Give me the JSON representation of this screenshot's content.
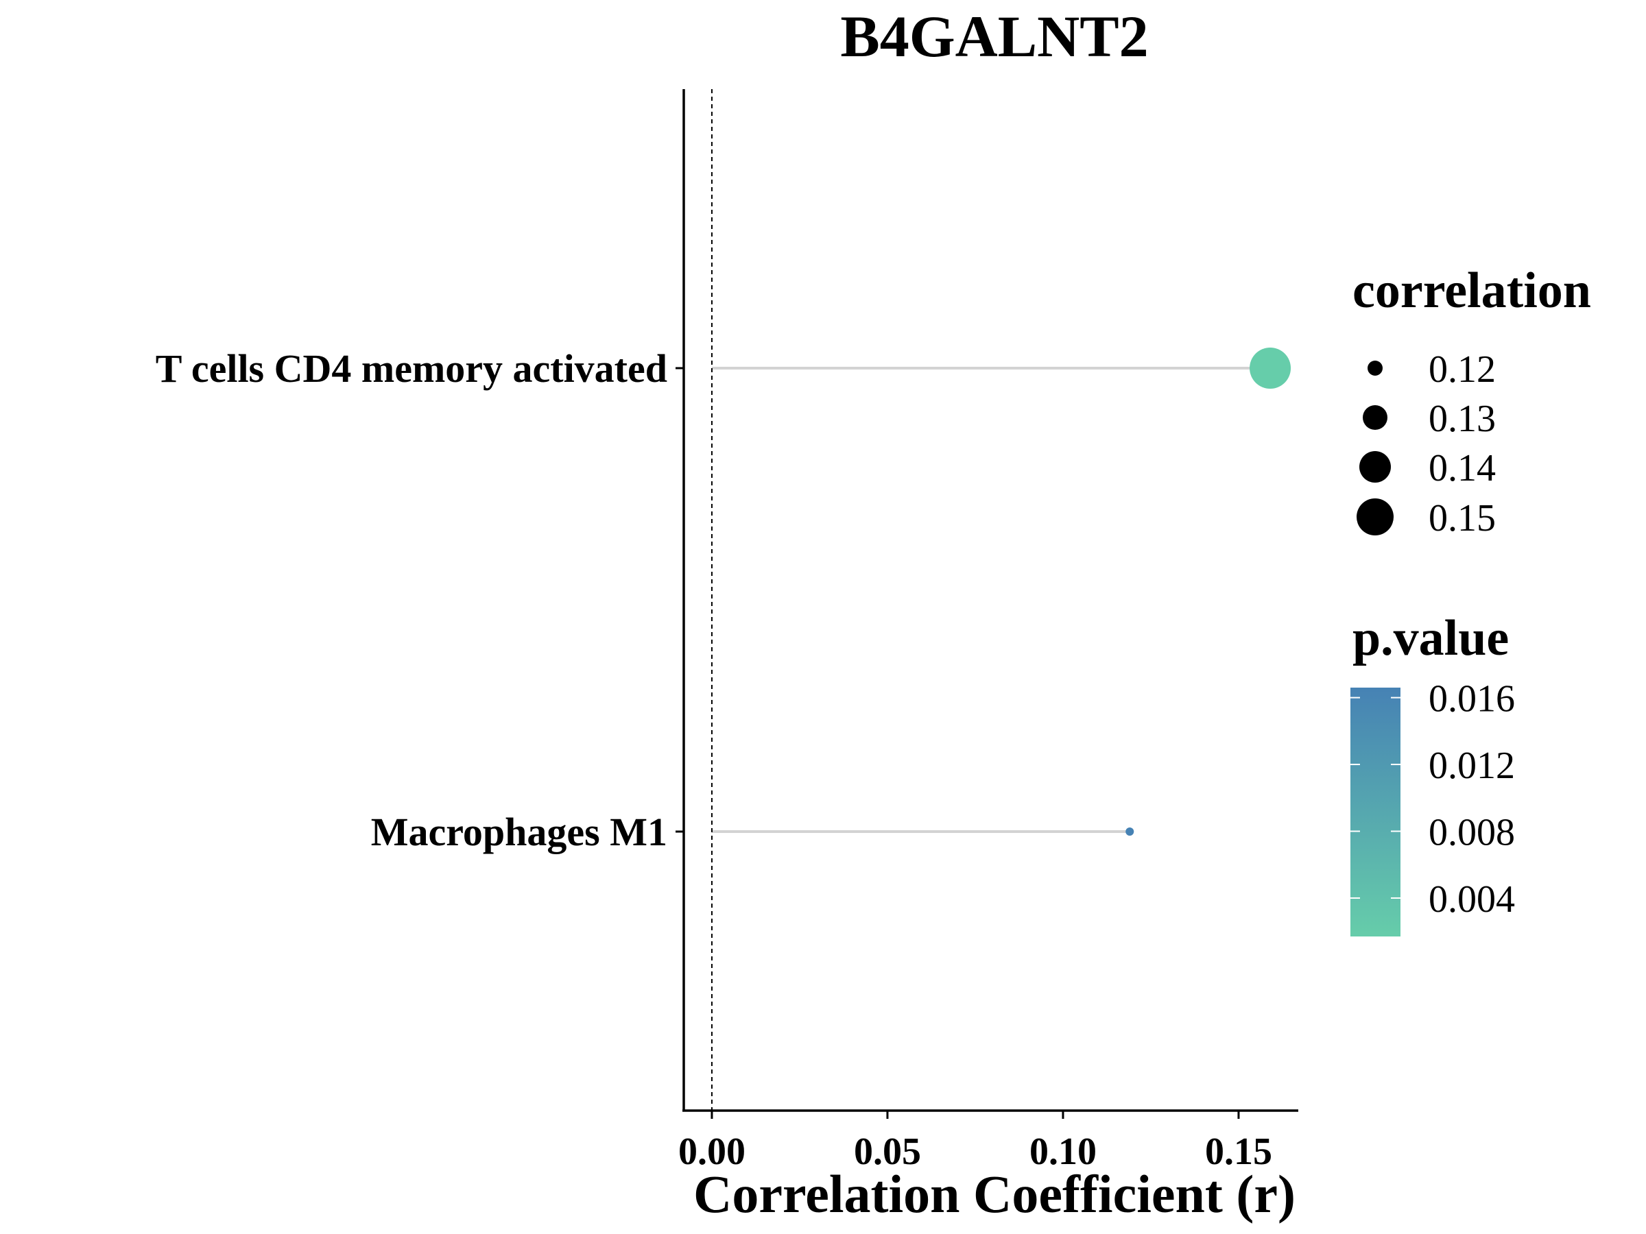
{
  "chart_data": {
    "type": "lollipop",
    "title": "B4GALNT2",
    "xlabel": "Correlation Coefficient (r)",
    "ylabel": "",
    "xlim": [
      -0.008,
      0.167
    ],
    "x_ticks": [
      "0.00",
      "0.05",
      "0.10",
      "0.15"
    ],
    "x_tick_values": [
      0,
      0.05,
      0.1,
      0.15
    ],
    "reference_line": 0,
    "categories": [
      "T cells CD4 memory activated",
      "Macrophages M1"
    ],
    "points": [
      {
        "category": "T cells CD4 memory activated",
        "correlation": 0.159,
        "p_value": 0.0017
      },
      {
        "category": "Macrophages M1",
        "correlation": 0.119,
        "p_value": 0.0166
      }
    ],
    "stem_color": "#d3d3d3",
    "size_legend": {
      "title": "correlation",
      "labels": [
        "0.12",
        "0.13",
        "0.14",
        "0.15"
      ],
      "values": [
        0.12,
        0.13,
        0.14,
        0.15
      ]
    },
    "color_legend": {
      "title": "p.value",
      "labels": [
        "0.016",
        "0.012",
        "0.008",
        "0.004"
      ],
      "values": [
        0.016,
        0.012,
        0.008,
        0.004
      ],
      "range": [
        0.0017,
        0.0166
      ],
      "low_color": "#66cdaa",
      "high_color": "#4682b4"
    },
    "grid": false,
    "legend_position": "right"
  }
}
